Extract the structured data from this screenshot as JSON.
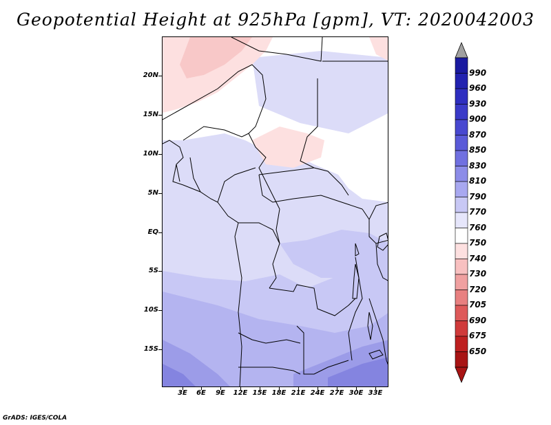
{
  "title": "Geopotential Height at 925hPa [gpm], VT: 2020042003",
  "footer": "GrADS: IGES/COLA",
  "lat_labels": [
    "20N",
    "15N",
    "10N",
    "5N",
    "EQ",
    "5S",
    "10S",
    "15S"
  ],
  "lon_labels": [
    "3E",
    "6E",
    "9E",
    "12E",
    "15E",
    "18E",
    "21E",
    "24E",
    "27E",
    "30E",
    "33E"
  ],
  "colorbar": {
    "levels": [
      "990",
      "960",
      "930",
      "900",
      "870",
      "850",
      "830",
      "810",
      "790",
      "770",
      "760",
      "750",
      "740",
      "730",
      "720",
      "705",
      "690",
      "675",
      "650"
    ],
    "colors": [
      "#1a1aa0",
      "#2222b0",
      "#2e2ec0",
      "#3a3ac8",
      "#4848d0",
      "#5a5ad8",
      "#7070e0",
      "#8c8ce8",
      "#a8a8f0",
      "#c8c8f5",
      "#e6e6fb",
      "#ffffff",
      "#fde0e0",
      "#f8c0c0",
      "#f0a0a0",
      "#e88080",
      "#de5a5a",
      "#d03a3a",
      "#be2020",
      "#a81414"
    ],
    "top_arrow_color": "#a0a0a0",
    "bottom_arrow_color": "#a81414"
  },
  "map_colors": {
    "pink_light": "#fde0e0",
    "pink": "#f8c8c8",
    "white": "#ffffff",
    "lav_1": "#dcdcf8",
    "lav_2": "#c8c8f5",
    "lav_3": "#b4b4f0",
    "lav_4": "#9c9ce8",
    "lav_5": "#8484e0"
  }
}
